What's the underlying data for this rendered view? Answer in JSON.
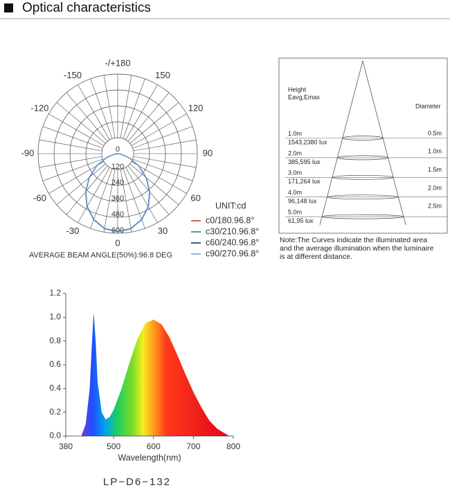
{
  "header": {
    "title": "Optical characteristics"
  },
  "chart_data": [
    {
      "type": "polar",
      "x": [
        -90,
        -80,
        -70,
        -60,
        -50,
        -40,
        -30,
        -20,
        -10,
        0,
        10,
        20,
        30,
        40,
        50,
        60,
        70,
        80,
        90
      ],
      "xticks": [
        0,
        30,
        60,
        90,
        120,
        150,
        {
          "value": 180,
          "label": "-/+180"
        },
        -150,
        -120,
        -90,
        -60,
        -30
      ],
      "ylim": [
        0,
        600
      ],
      "yticks": [
        0,
        120,
        240,
        360,
        480,
        600
      ],
      "unit_label": "UNIT:cd",
      "caption": "AVERAGE BEAM ANGLE(50%):96.8 DEG",
      "series": [
        {
          "name": "c0/180.96.8°",
          "color": "#d9322b",
          "values": [
            0,
            30,
            96,
            183,
            282,
            377,
            463,
            530,
            575,
            590,
            575,
            530,
            463,
            377,
            282,
            183,
            96,
            30,
            0
          ]
        },
        {
          "name": "c30/210.96.8°",
          "color": "#2a8a4a",
          "values": [
            0,
            29,
            95,
            182,
            281,
            376,
            462,
            529,
            574,
            589,
            574,
            529,
            462,
            376,
            281,
            182,
            95,
            29,
            0
          ]
        },
        {
          "name": "c60/240.96.8°",
          "color": "#1f2a7a",
          "values": [
            0,
            29,
            94,
            181,
            280,
            375,
            461,
            528,
            574,
            588,
            574,
            528,
            461,
            375,
            280,
            181,
            94,
            29,
            0
          ]
        },
        {
          "name": "c90/270.96.8°",
          "color": "#6fa8dc",
          "values": [
            0,
            30,
            97,
            184,
            283,
            378,
            464,
            531,
            576,
            591,
            576,
            531,
            464,
            378,
            283,
            184,
            97,
            30,
            0
          ]
        }
      ]
    },
    {
      "type": "area",
      "x": [
        420,
        430,
        440,
        445,
        450,
        455,
        460,
        470,
        480,
        490,
        500,
        520,
        540,
        560,
        580,
        600,
        620,
        640,
        660,
        680,
        700,
        720,
        740,
        760,
        780,
        790
      ],
      "values": [
        0.01,
        0.1,
        0.4,
        0.75,
        1.04,
        0.8,
        0.45,
        0.2,
        0.14,
        0.16,
        0.22,
        0.4,
        0.62,
        0.82,
        0.95,
        0.98,
        0.94,
        0.83,
        0.68,
        0.52,
        0.37,
        0.24,
        0.13,
        0.06,
        0.02,
        0
      ],
      "xlim": [
        380,
        800
      ],
      "xticks": [
        380,
        500,
        600,
        700,
        800
      ],
      "ylim": [
        0,
        1.2
      ],
      "yticks": [
        {
          "value": 0,
          "label": "0.0"
        },
        0.2,
        0.4,
        0.6,
        0.8,
        {
          "value": 1,
          "label": "1.0"
        },
        1.2
      ],
      "xlabel": "Wavelength(nm)"
    }
  ],
  "distance_table": {
    "height_header": "Height",
    "eavg_header": "Eavg,Emax",
    "diameter_header": "Diameter",
    "rows": [
      {
        "height": "1.0m",
        "lux": "1543,2380 lux",
        "diameter": "0.5m"
      },
      {
        "height": "2.0m",
        "lux": "385,595 lux",
        "diameter": "1.0m"
      },
      {
        "height": "3.0m",
        "lux": "171,264 lux",
        "diameter": "1.5m"
      },
      {
        "height": "4.0m",
        "lux": "96,148 lux",
        "diameter": "2.0m"
      },
      {
        "height": "5.0m",
        "lux": "61,95 lux",
        "diameter": "2.5m"
      }
    ],
    "note": [
      "Note:The Curves indicate the illuminated area",
      "and the average illumination when the luminaire",
      "is at different distance."
    ]
  },
  "model": "LP−D6−132"
}
